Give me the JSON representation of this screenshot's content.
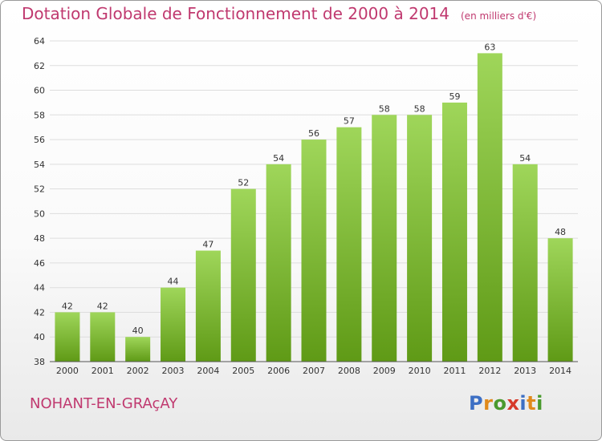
{
  "header": {
    "title": "Dotation Globale de Fonctionnement de 2000 à 2014",
    "unit": "(en milliers d'€)"
  },
  "footer": {
    "commune": "NOHANT-EN-GRAçAY",
    "logo": [
      "P",
      "r",
      "o",
      "x",
      "i",
      "t",
      "i"
    ],
    "logo_colors": [
      "#3d6fc4",
      "#e08a1c",
      "#4a9a2e",
      "#d63a2a",
      "#3d6fc4",
      "#e08a1c",
      "#4a9a2e"
    ]
  },
  "colors": {
    "bar_top": "#9fd65a",
    "bar_bottom": "#5f9a16",
    "grid": "#dddddd",
    "axis": "#555555",
    "accent": "#c0396f"
  },
  "chart_data": {
    "type": "bar",
    "title": "Dotation Globale de Fonctionnement de 2000 à 2014",
    "subtitle": "(en milliers d'€)",
    "xlabel": "",
    "ylabel": "",
    "categories": [
      "2000",
      "2001",
      "2002",
      "2003",
      "2004",
      "2005",
      "2006",
      "2007",
      "2008",
      "2009",
      "2010",
      "2011",
      "2012",
      "2013",
      "2014"
    ],
    "values": [
      42,
      42,
      40,
      44,
      47,
      52,
      54,
      56,
      57,
      58,
      58,
      59,
      63,
      54,
      48
    ],
    "ylim": [
      38,
      64
    ],
    "yticks": [
      38,
      40,
      42,
      44,
      46,
      48,
      50,
      52,
      54,
      56,
      58,
      60,
      62,
      64
    ],
    "grid": true,
    "legend": "none"
  }
}
